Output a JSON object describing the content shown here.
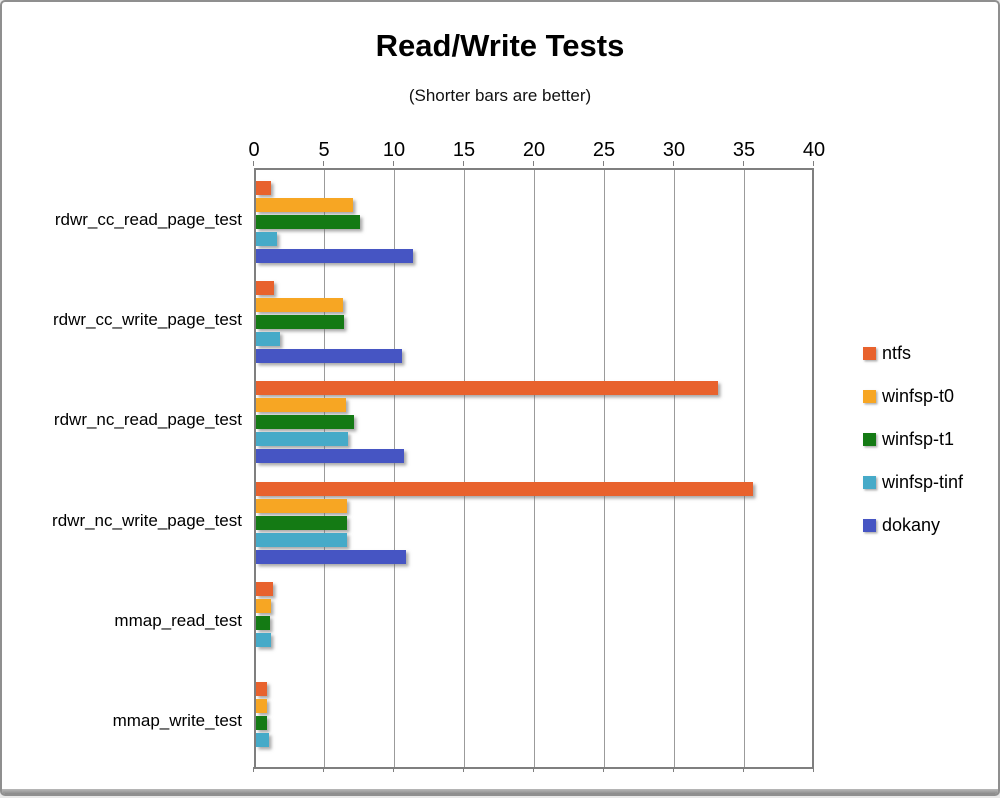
{
  "window": {
    "background": "#ffffff",
    "border_color": "#8f8f8f"
  },
  "chart_data": {
    "type": "bar",
    "orientation": "horizontal",
    "title": "Read/Write Tests",
    "subtitle": "(Shorter bars are better)",
    "xlabel": "",
    "ylabel": "",
    "xlim": [
      0,
      40
    ],
    "x_ticks": [
      0,
      5,
      10,
      15,
      20,
      25,
      30,
      35,
      40
    ],
    "grid": true,
    "legend_position": "right",
    "note": "shorter bars are better",
    "categories": [
      "rdwr_cc_read_page_test",
      "rdwr_cc_write_page_test",
      "rdwr_nc_read_page_test",
      "rdwr_nc_write_page_test",
      "mmap_read_test",
      "mmap_write_test"
    ],
    "series": [
      {
        "name": "ntfs",
        "color": "#e8622d",
        "values": [
          1.1,
          1.3,
          33.0,
          35.5,
          1.2,
          0.8
        ]
      },
      {
        "name": "winfsp-t0",
        "color": "#f7a623",
        "values": [
          6.9,
          6.2,
          6.4,
          6.5,
          1.1,
          0.8
        ]
      },
      {
        "name": "winfsp-t1",
        "color": "#147a14",
        "values": [
          7.4,
          6.3,
          7.0,
          6.5,
          1.0,
          0.8
        ]
      },
      {
        "name": "winfsp-tinf",
        "color": "#46aac8",
        "values": [
          1.5,
          1.7,
          6.6,
          6.5,
          1.1,
          0.9
        ]
      },
      {
        "name": "dokany",
        "color": "#4655c3",
        "values": [
          11.2,
          10.4,
          10.6,
          10.7,
          0,
          0
        ]
      }
    ]
  }
}
